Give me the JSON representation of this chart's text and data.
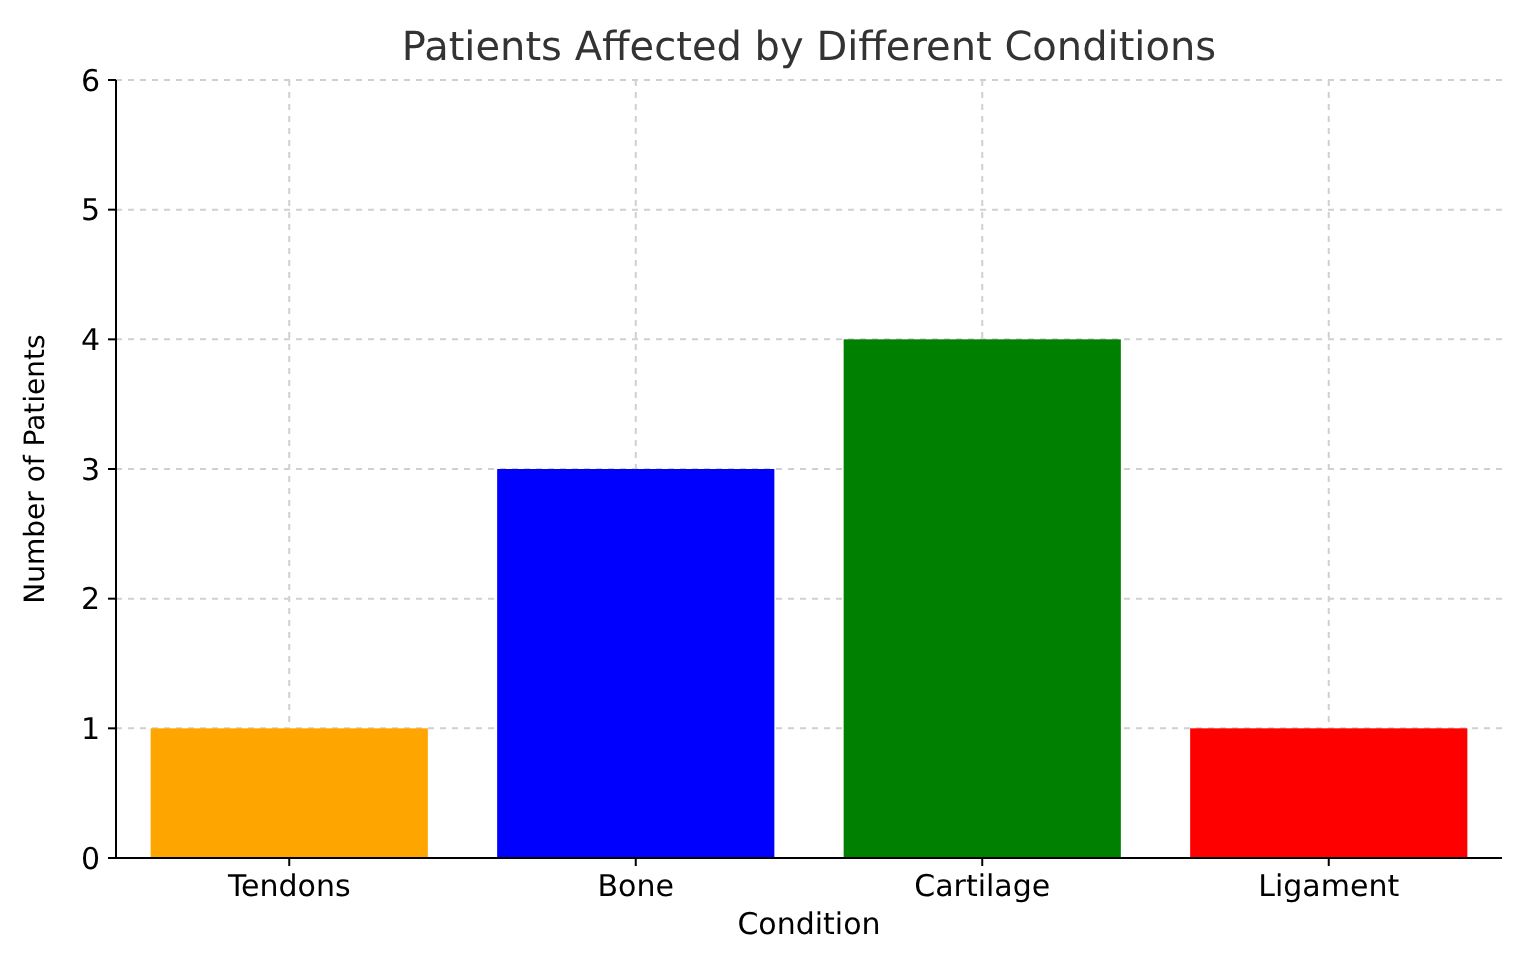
{
  "chart_data": {
    "type": "bar",
    "title": "Patients Affected by Different Conditions",
    "xlabel": "Condition",
    "ylabel": "Number of Patients",
    "categories": [
      "Tendons",
      "Bone",
      "Cartilage",
      "Ligament"
    ],
    "values": [
      1,
      3,
      4,
      1
    ],
    "colors": [
      "#ffa500",
      "#0000ff",
      "#008000",
      "#ff0000"
    ],
    "ylim": [
      0,
      6
    ],
    "yticks": [
      0,
      1,
      2,
      3,
      4,
      5,
      6
    ],
    "grid": true
  }
}
